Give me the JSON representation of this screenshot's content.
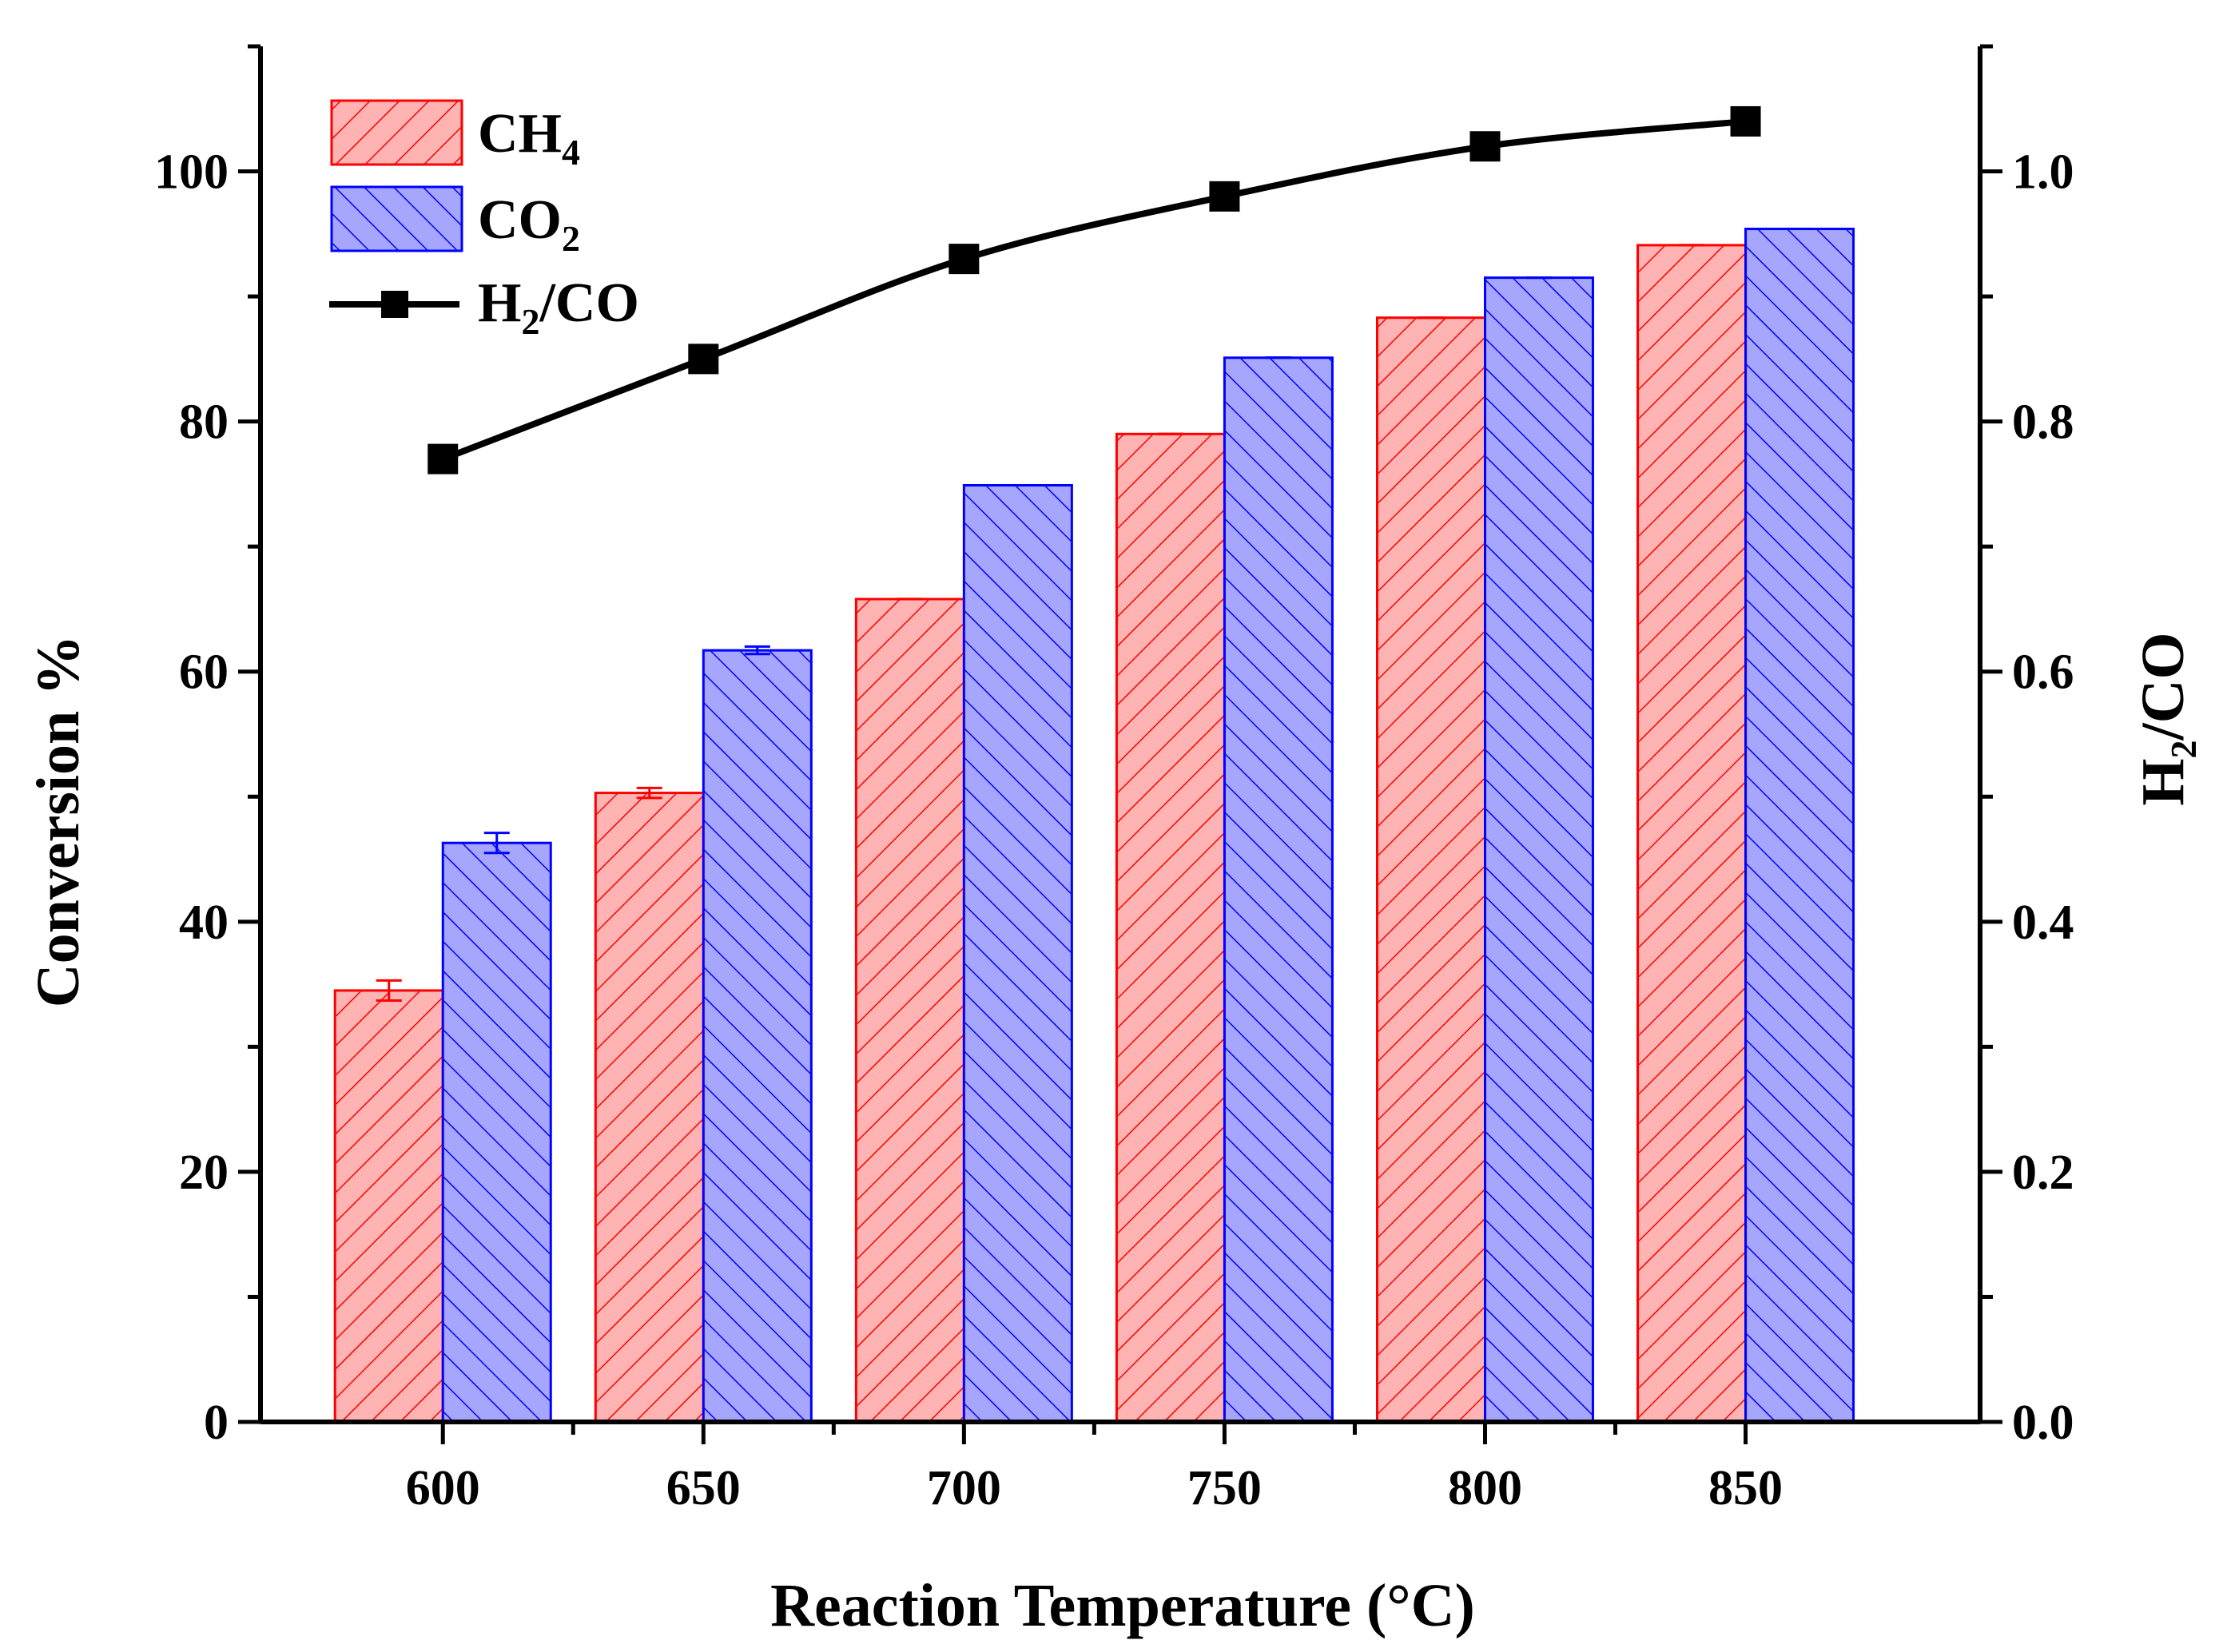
{
  "chart_data": {
    "type": "bar",
    "title": "",
    "xlabel": "Reaction Temperature (°C)",
    "ylabel": "Conversion %",
    "y2label": {
      "main": "H",
      "sub": "2",
      "rest": "/CO"
    },
    "categories": [
      "600",
      "650",
      "700",
      "750",
      "800",
      "850"
    ],
    "x_values": [
      600,
      650,
      700,
      750,
      800,
      850
    ],
    "xlim": [
      565,
      895
    ],
    "ylim": [
      0,
      110
    ],
    "y2lim": [
      0,
      1.1
    ],
    "yticks": [
      "0",
      "20",
      "40",
      "60",
      "80",
      "100"
    ],
    "y2ticks": [
      "0.0",
      "0.2",
      "0.4",
      "0.6",
      "0.8",
      "1.0"
    ],
    "series": [
      {
        "name": "CH4",
        "legend": {
          "main": "CH",
          "sub": "4"
        },
        "type": "bar",
        "color": "#ff0000",
        "fill": "#ffb3b3",
        "hatch": "forward-diagonal",
        "values": [
          34.5,
          50.3,
          65.8,
          79.0,
          88.3,
          94.1
        ],
        "errors": [
          0.8,
          0.4,
          0.0,
          0.0,
          0.0,
          0.0
        ]
      },
      {
        "name": "CO2",
        "legend": {
          "main": "CO",
          "sub": "2"
        },
        "type": "bar",
        "color": "#0000ff",
        "fill": "#a6a6ff",
        "hatch": "back-diagonal",
        "values": [
          46.3,
          61.7,
          74.9,
          85.1,
          91.5,
          95.4
        ],
        "errors": [
          0.8,
          0.3,
          0.0,
          0.0,
          0.0,
          0.0
        ]
      },
      {
        "name": "H2/CO",
        "legend": {
          "main": "H",
          "sub": "2",
          "rest": "/CO"
        },
        "type": "line",
        "axis": "right",
        "color": "#000000",
        "marker": "square",
        "values": [
          0.77,
          0.85,
          0.93,
          0.98,
          1.02,
          1.04
        ]
      }
    ],
    "legend_position": "top-left",
    "grid": false
  }
}
